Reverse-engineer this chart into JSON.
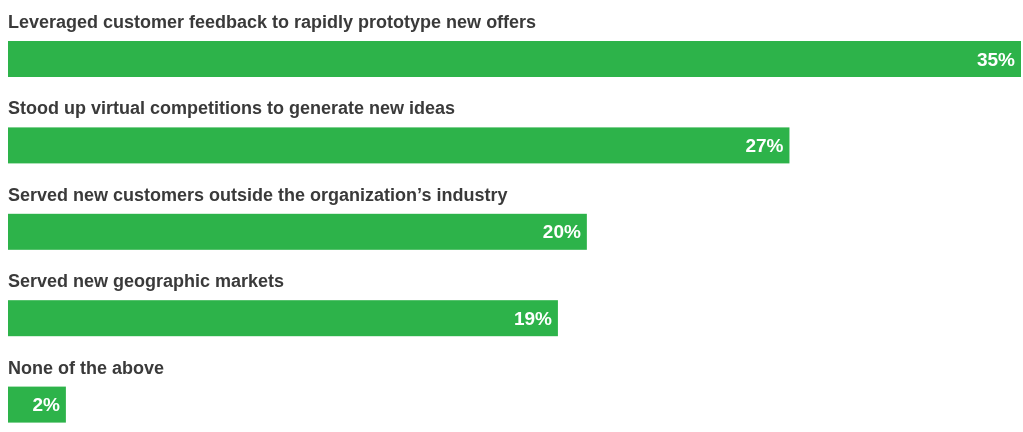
{
  "chart_data": {
    "type": "bar",
    "orientation": "horizontal",
    "categories": [
      "Leveraged customer feedback to rapidly prototype new offers",
      "Stood up virtual competitions to generate new ideas",
      "Served new customers outside the organization’s industry",
      "Served new geographic markets",
      "None of the above"
    ],
    "values": [
      35,
      27,
      20,
      19,
      2
    ],
    "value_labels": [
      "35%",
      "27%",
      "20%",
      "19%",
      "2%"
    ],
    "color": "#2db34a"
  }
}
